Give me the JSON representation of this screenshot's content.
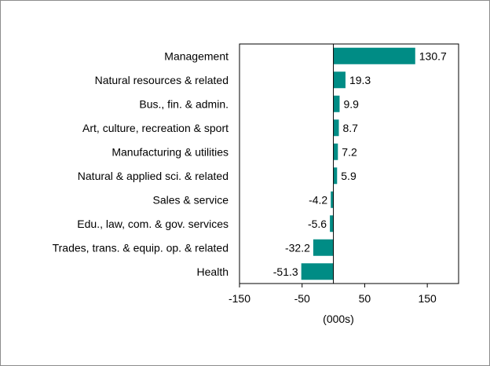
{
  "chart_data": {
    "type": "bar",
    "orientation": "horizontal",
    "title": "",
    "xlabel": "(000s)",
    "ylabel": "",
    "categories": [
      "Management",
      "Natural resources & related",
      "Bus., fin. & admin.",
      "Art, culture, recreation & sport",
      "Manufacturing & utilities",
      "Natural & applied sci. & related",
      "Sales & service",
      "Edu., law, com. & gov. services",
      "Trades, trans. & equip. op. & related",
      "Health"
    ],
    "values": [
      130.7,
      19.3,
      9.9,
      8.7,
      7.2,
      5.9,
      -4.2,
      -5.6,
      -32.2,
      -51.3
    ],
    "data_labels": [
      "130.7",
      "19.3",
      "9.9",
      "8.7",
      "7.2",
      "5.9",
      "-4.2",
      "-5.6",
      "-32.2",
      "-51.3"
    ],
    "xlim": [
      -150,
      200
    ],
    "xticks": [
      -150,
      -50,
      50,
      150
    ],
    "xtick_labels": [
      "-150",
      "-50",
      "50",
      "150"
    ],
    "grid": false,
    "legend": "none",
    "colors": {
      "bar": "#008C85",
      "axis": "#000000",
      "border": "#8C8C8C"
    }
  }
}
